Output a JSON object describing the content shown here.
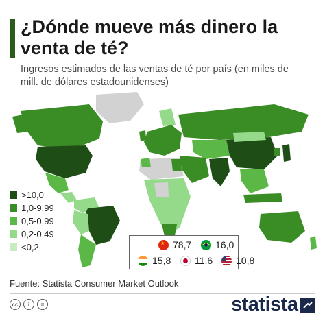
{
  "header": {
    "title": "¿Dónde mueve más dinero la venta de té?",
    "subtitle": "Ingresos estimados de las ventas de té por país (en miles de mill. de dólares estadounidenses)"
  },
  "colors": {
    "accent": "#2c5c1b",
    "tier_gt10": "#1f4d16",
    "tier_1_999": "#3a8c24",
    "tier_05_099": "#5cb846",
    "tier_02_049": "#95d98a",
    "tier_lt02": "#c8ecc0",
    "no_data": "#d2d2d2"
  },
  "legend": [
    {
      "label": ">10,0",
      "color": "#1f4d16"
    },
    {
      "label": "1,0-9,99",
      "color": "#3a8c24"
    },
    {
      "label": "0,5-0,99",
      "color": "#5cb846"
    },
    {
      "label": "0,2-0,49",
      "color": "#95d98a"
    },
    {
      "label": "<0,2",
      "color": "#c8ecc0"
    }
  ],
  "top_countries": [
    {
      "country": "China",
      "value": "78,7",
      "flag": "china-flag-icon"
    },
    {
      "country": "Brasil",
      "value": "16,0",
      "flag": "brazil-flag-icon"
    },
    {
      "country": "India",
      "value": "15,8",
      "flag": "india-flag-icon"
    },
    {
      "country": "Japón",
      "value": "11,6",
      "flag": "japan-flag-icon"
    },
    {
      "country": "Estados Unidos",
      "value": "10,8",
      "flag": "usa-flag-icon"
    }
  ],
  "footer": {
    "source": "Fuente: Statista Consumer Market Outlook",
    "brand": "statista"
  }
}
